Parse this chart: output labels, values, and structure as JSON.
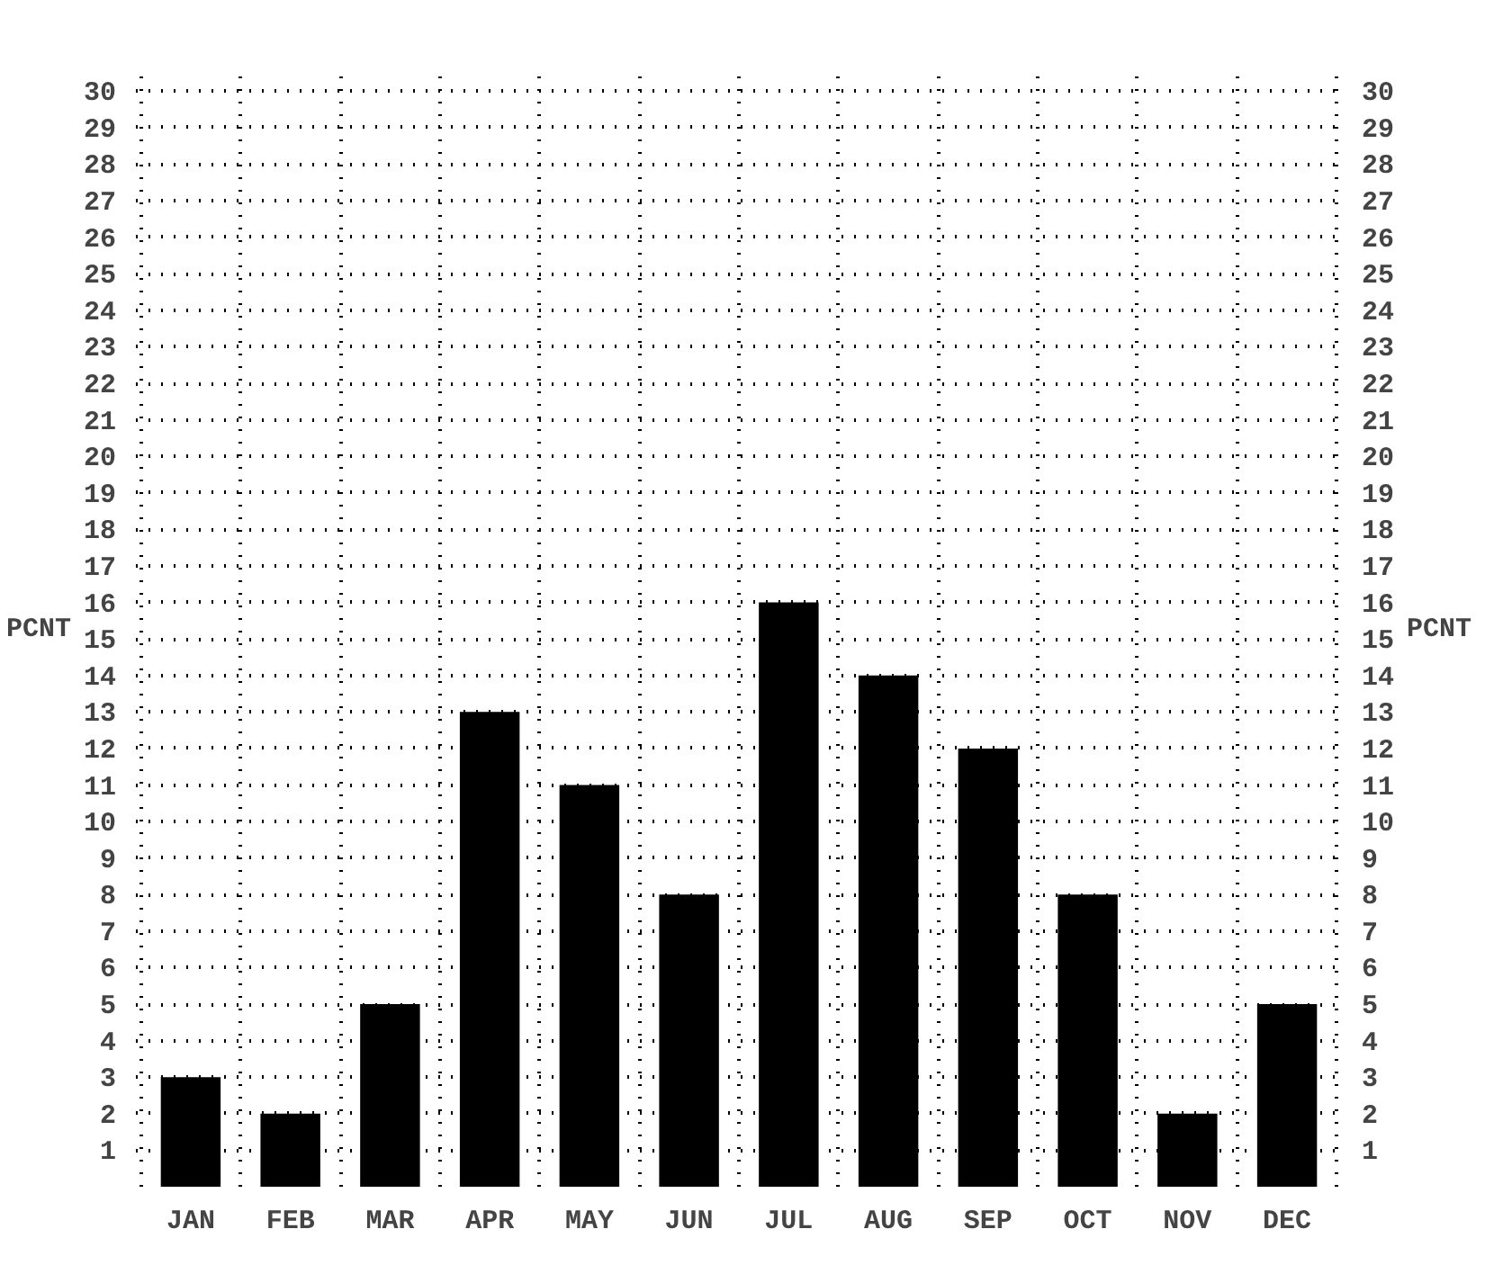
{
  "chart_data": {
    "type": "bar",
    "ylabel": "PCNT",
    "y2label": "PCNT",
    "categories": [
      "JAN",
      "FEB",
      "MAR",
      "APR",
      "MAY",
      "JUN",
      "JUL",
      "AUG",
      "SEP",
      "OCT",
      "NOV",
      "DEC"
    ],
    "values": [
      3,
      2,
      5,
      13,
      11,
      8,
      16,
      14,
      12,
      8,
      2,
      5
    ],
    "color": "#000000",
    "ylim": [
      0,
      30.5
    ],
    "yticks": [
      1,
      2,
      3,
      4,
      5,
      6,
      7,
      8,
      9,
      10,
      11,
      12,
      13,
      14,
      15,
      16,
      17,
      18,
      19,
      20,
      21,
      22,
      23,
      24,
      25,
      26,
      27,
      28,
      29,
      30
    ],
    "y2lim": [
      0,
      30.5
    ],
    "y2ticks": [
      1,
      2,
      3,
      4,
      5,
      6,
      7,
      8,
      9,
      10,
      11,
      12,
      13,
      14,
      15,
      16,
      17,
      18,
      19,
      20,
      21,
      22,
      23,
      24,
      25,
      26,
      27,
      28,
      29,
      30
    ],
    "grid": true
  }
}
